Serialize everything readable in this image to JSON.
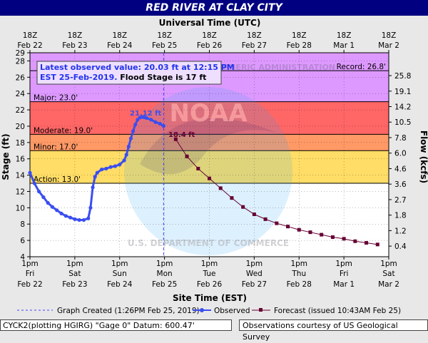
{
  "page": {
    "title": "RED RIVER AT CLAY CITY",
    "top_axis_title": "Universal Time (UTC)",
    "bottom_axis_title": "Site Time (EST)",
    "left_axis_title": "Stage (ft)",
    "right_axis_title": "Flow (kcfs)",
    "latest_line1": "Latest observed value: 20.03 ft at 12:15 PM",
    "latest_line2a": "EST 25-Feb-2019.",
    "latest_line2b": " Flood Stage is 17 ft",
    "peak_label": "21.12 ft",
    "forecast_start_label": "18.4 ft",
    "footer_left": "CYCK2(plotting HGIRG) \"Gage 0\" Datum: 600.47'",
    "footer_right": "Observations courtesy of US Geological Survey",
    "watermark_noaa": "NOAA",
    "watermark_top": "NATIONAL OCEANIC AND ATMOSPHERIC ADMINISTRATION",
    "watermark_bottom": "U.S. DEPARTMENT OF COMMERCE"
  },
  "colors": {
    "record": "#dd99ff",
    "major": "#ff6666",
    "moderate": "#ff9966",
    "minor": "#ffdd66",
    "action": "#ffff44",
    "normal": "#ffffff",
    "observed": "#3a4ef0",
    "forecast": "#660033",
    "title_bg": "#000080",
    "created_line": "#4444ff"
  },
  "chart_data": {
    "type": "line",
    "x_unit": "days from Feb 22 1pm EST",
    "xlim": [
      0,
      8
    ],
    "ylim": [
      4,
      29
    ],
    "y_ticks": [
      4,
      6,
      8,
      10,
      12,
      14,
      16,
      18,
      20,
      22,
      24,
      26,
      28,
      29
    ],
    "flow_ticks": [
      {
        "stage": 5.3,
        "label": "0.4"
      },
      {
        "stage": 7.2,
        "label": "1.2"
      },
      {
        "stage": 9.1,
        "label": "1.8"
      },
      {
        "stage": 11.0,
        "label": "2.7"
      },
      {
        "stage": 12.9,
        "label": "3.6"
      },
      {
        "stage": 14.8,
        "label": "4.6"
      },
      {
        "stage": 16.7,
        "label": "6.0"
      },
      {
        "stage": 18.6,
        "label": "7.8"
      },
      {
        "stage": 20.5,
        "label": "10.5"
      },
      {
        "stage": 22.4,
        "label": "14.2"
      },
      {
        "stage": 24.3,
        "label": "19.1"
      },
      {
        "stage": 26.2,
        "label": "25.8"
      }
    ],
    "top_ticks": [
      {
        "x": 0,
        "l1": "18Z",
        "l2": "Feb 22"
      },
      {
        "x": 1,
        "l1": "18Z",
        "l2": "Feb 23"
      },
      {
        "x": 2,
        "l1": "18Z",
        "l2": "Feb 24"
      },
      {
        "x": 3,
        "l1": "18Z",
        "l2": "Feb 25"
      },
      {
        "x": 4,
        "l1": "18Z",
        "l2": "Feb 26"
      },
      {
        "x": 5,
        "l1": "18Z",
        "l2": "Feb 27"
      },
      {
        "x": 6,
        "l1": "18Z",
        "l2": "Feb 28"
      },
      {
        "x": 7,
        "l1": "18Z",
        "l2": "Mar 1"
      },
      {
        "x": 8,
        "l1": "18Z",
        "l2": "Mar 2"
      }
    ],
    "bottom_ticks": [
      {
        "x": 0,
        "l1": "1pm",
        "l2": "Fri",
        "l3": "Feb 22"
      },
      {
        "x": 1,
        "l1": "1pm",
        "l2": "Sat",
        "l3": "Feb 23"
      },
      {
        "x": 2,
        "l1": "1pm",
        "l2": "Sun",
        "l3": "Feb 24"
      },
      {
        "x": 3,
        "l1": "1pm",
        "l2": "Mon",
        "l3": "Feb 25"
      },
      {
        "x": 4,
        "l1": "1pm",
        "l2": "Tue",
        "l3": "Feb 26"
      },
      {
        "x": 5,
        "l1": "1pm",
        "l2": "Wed",
        "l3": "Feb 27"
      },
      {
        "x": 6,
        "l1": "1pm",
        "l2": "Thu",
        "l3": "Feb 28"
      },
      {
        "x": 7,
        "l1": "1pm",
        "l2": "Fri",
        "l3": "Mar 1"
      },
      {
        "x": 8,
        "l1": "1pm",
        "l2": "Sat",
        "l3": "Mar 2"
      }
    ],
    "flood_categories": [
      {
        "name": "Record",
        "stage": 26.8,
        "label": "Record:  26.8'"
      },
      {
        "name": "Major",
        "stage": 23.0,
        "label": "Major: 23.0'"
      },
      {
        "name": "Moderate",
        "stage": 19.0,
        "label": "Moderate: 19.0'"
      },
      {
        "name": "Minor",
        "stage": 17.0,
        "label": "Minor: 17.0'"
      },
      {
        "name": "Action",
        "stage": 13.0,
        "label": "Action: 13.0'"
      }
    ],
    "graph_created_x": 2.98,
    "series": [
      {
        "name": "Observed",
        "x": [
          0,
          0.1,
          0.2,
          0.3,
          0.4,
          0.5,
          0.6,
          0.7,
          0.8,
          0.9,
          1.0,
          1.1,
          1.2,
          1.3,
          1.35,
          1.4,
          1.45,
          1.5,
          1.6,
          1.7,
          1.8,
          1.9,
          2.0,
          2.1,
          2.15,
          2.2,
          2.25,
          2.3,
          2.35,
          2.4,
          2.45,
          2.5,
          2.55,
          2.6,
          2.7,
          2.8,
          2.9,
          2.98
        ],
        "y": [
          14.3,
          13.0,
          12.0,
          11.3,
          10.6,
          10.1,
          9.7,
          9.3,
          9.0,
          8.8,
          8.6,
          8.5,
          8.5,
          8.7,
          10.0,
          12.5,
          13.8,
          14.3,
          14.7,
          14.8,
          15.0,
          15.1,
          15.3,
          15.8,
          16.5,
          17.5,
          18.5,
          19.4,
          20.2,
          20.8,
          21.05,
          21.12,
          21.1,
          21.0,
          20.8,
          20.5,
          20.3,
          20.03
        ]
      },
      {
        "name": "Forecast (issued 10:43AM Feb 25)",
        "x": [
          3.25,
          3.5,
          3.75,
          4.0,
          4.25,
          4.5,
          4.75,
          5.0,
          5.25,
          5.5,
          5.75,
          6.0,
          6.25,
          6.5,
          6.75,
          7.0,
          7.25,
          7.5,
          7.75
        ],
        "y": [
          18.4,
          16.3,
          14.8,
          13.6,
          12.4,
          11.2,
          10.1,
          9.2,
          8.6,
          8.1,
          7.7,
          7.3,
          7.0,
          6.7,
          6.4,
          6.2,
          5.9,
          5.7,
          5.5
        ]
      }
    ]
  },
  "legend": {
    "created": "Graph Created (1:26PM Feb 25, 2019)",
    "observed": "Observed",
    "forecast": "Forecast (issued 10:43AM Feb 25)"
  }
}
